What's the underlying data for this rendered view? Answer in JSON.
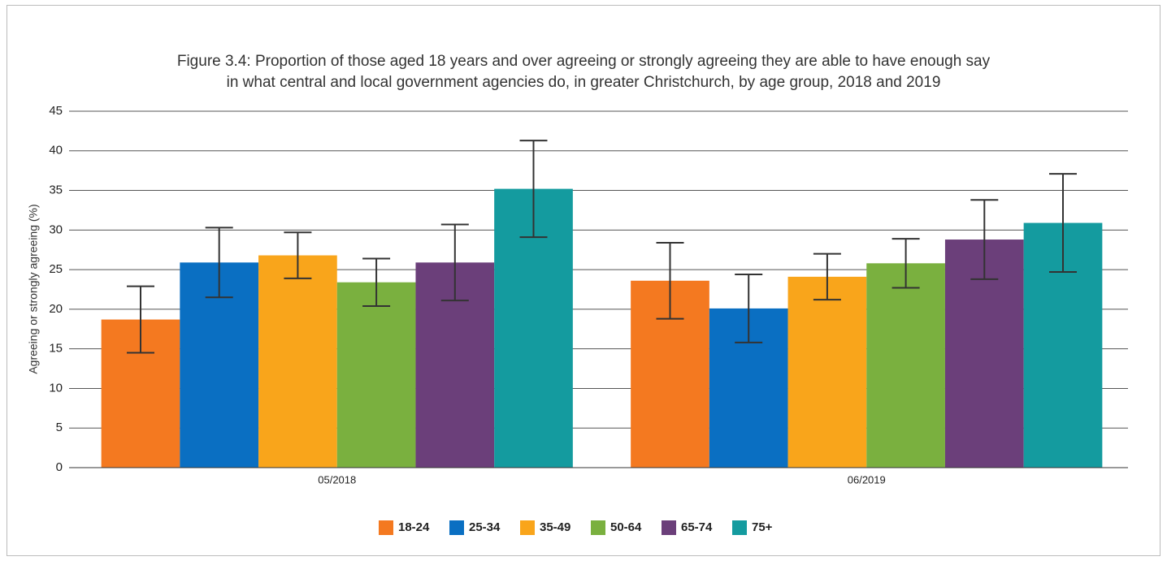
{
  "chart_data": {
    "type": "bar",
    "title": [
      "Figure 3.4: Proportion of those aged 18 years and over agreeing or strongly agreeing they are able to have enough say",
      "in what central and local government agencies do, in greater Christchurch, by age group, 2018 and 2019"
    ],
    "y_label": "Agreeing or strongly agreeing (%)",
    "categories": [
      "05/2018",
      "06/2019"
    ],
    "series": [
      {
        "name": "18-24",
        "color": "#f47920",
        "values": [
          18.7,
          23.6
        ],
        "errors": [
          4.2,
          4.8
        ]
      },
      {
        "name": "25-34",
        "color": "#0a6fc2",
        "values": [
          25.9,
          20.1
        ],
        "errors": [
          4.4,
          4.3
        ]
      },
      {
        "name": "35-49",
        "color": "#f9a51b",
        "values": [
          26.8,
          24.1
        ],
        "errors": [
          2.9,
          2.9
        ]
      },
      {
        "name": "50-64",
        "color": "#7ab03f",
        "values": [
          23.4,
          25.8
        ],
        "errors": [
          3.0,
          3.1
        ]
      },
      {
        "name": "65-74",
        "color": "#6b3f7a",
        "values": [
          25.9,
          28.8
        ],
        "errors": [
          4.8,
          5.0
        ]
      },
      {
        "name": "75+",
        "color": "#149b9f",
        "values": [
          35.2,
          30.9
        ],
        "errors": [
          6.1,
          6.2
        ]
      }
    ],
    "ylim": [
      0,
      45
    ],
    "yticks": [
      0,
      5,
      10,
      15,
      20,
      25,
      30,
      35,
      40,
      45
    ],
    "grid": true,
    "legend": "bottom"
  }
}
